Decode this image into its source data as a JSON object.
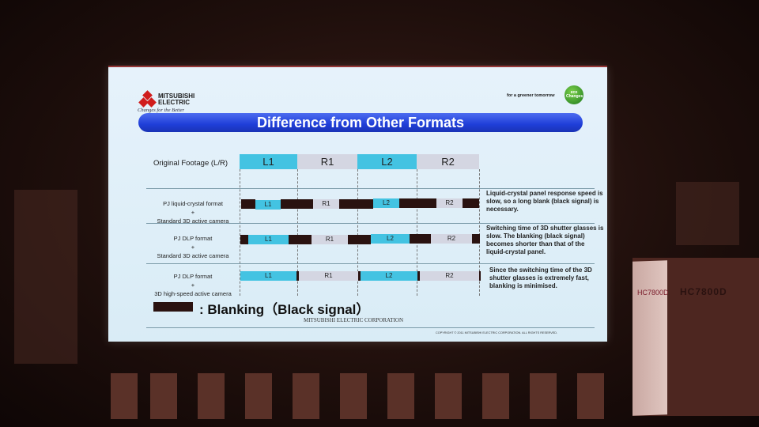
{
  "slide": {
    "logo": {
      "brand_line1": "MITSUBISHI",
      "brand_line2": "ELECTRIC",
      "tagline": "Changes for the Better"
    },
    "eco": {
      "slogan": "for a greener tomorrow",
      "badge": "eco Changes"
    },
    "title": "Difference from Other Formats",
    "original_label": "Original Footage (L/R)",
    "original_frames": [
      "L1",
      "R1",
      "L2",
      "R2"
    ],
    "rows": [
      {
        "label_line1": "PJ liquid-crystal format",
        "plus": "+",
        "label_line2": "Standard 3D active camera",
        "note": "Liquid-crystal panel response speed is slow, so a long blank (black signal) is necessary."
      },
      {
        "label_line1": "PJ DLP format",
        "plus": "+",
        "label_line2": "Standard 3D active camera",
        "note": "Switching time of 3D shutter glasses is slow. The blanking (black signal) becomes shorter than that of the liquid-crystal panel."
      },
      {
        "label_line1": "PJ DLP format",
        "plus": "+",
        "label_line2": "3D high-speed active camera",
        "note": "Since the switching time of the 3D shutter glasses is extremely fast, blanking is minimised."
      }
    ],
    "legend": ": Blanking（Black signal）",
    "corporation": "MITSUBISHI ELECTRIC CORPORATION",
    "copyright": "COPYRIGHT © 2011 MITSUBISHI ELECTRIC CORPORATION. ALL RIGHTS RESERVED."
  },
  "projector": {
    "model_front": "HC7800D",
    "model_side": "HC7800D"
  },
  "colors": {
    "left_frame": "#43c3e2",
    "right_frame": "#d4d6e2",
    "blanking": "#2a1210",
    "title_bar": "#1f3ed8"
  }
}
